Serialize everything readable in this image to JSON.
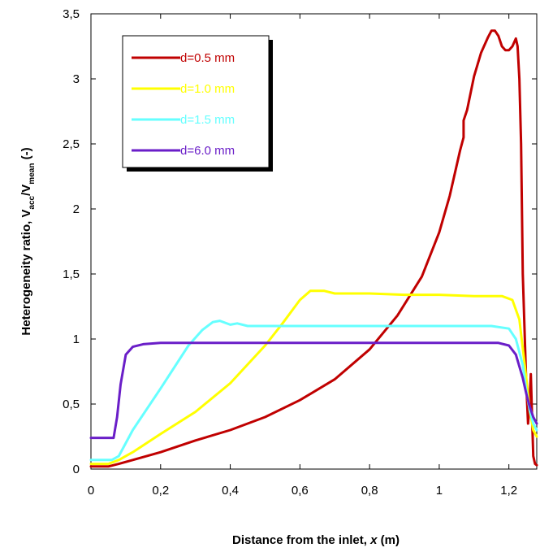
{
  "chart_data": {
    "type": "line",
    "xlabel": "Distance from the inlet, x (m)",
    "xlabel_parts": {
      "pre": "Distance from the inlet, ",
      "var": "x",
      "post": " (m)"
    },
    "ylabel": "Heterogeneity ratio, Vacc/Vmean (-)",
    "ylabel_parts": {
      "pre": "Heterogeneity ratio, V",
      "sub1": "acc",
      "mid": "/V",
      "sub2": "mean",
      "post": " (-)"
    },
    "xlim": [
      0,
      1.28
    ],
    "ylim": [
      0,
      3.5
    ],
    "x_tick_values": [
      0,
      0.2,
      0.4,
      0.6,
      0.8,
      1,
      1.2
    ],
    "x_tick_labels": [
      "0",
      "0,2",
      "0,4",
      "0,6",
      "0,8",
      "1",
      "1,2"
    ],
    "y_tick_values": [
      0,
      0.5,
      1,
      1.5,
      2,
      2.5,
      3,
      3.5
    ],
    "y_tick_labels": [
      "0",
      "0,5",
      "1",
      "1,5",
      "2",
      "2,5",
      "3",
      "3,5"
    ],
    "grid": false,
    "legend_position": "top-left",
    "series": [
      {
        "name": "d=0.5 mm",
        "color": "#c00000",
        "points": [
          [
            0,
            0.02
          ],
          [
            0.05,
            0.02
          ],
          [
            0.08,
            0.04
          ],
          [
            0.12,
            0.07
          ],
          [
            0.2,
            0.13
          ],
          [
            0.3,
            0.22
          ],
          [
            0.4,
            0.3
          ],
          [
            0.5,
            0.4
          ],
          [
            0.6,
            0.53
          ],
          [
            0.7,
            0.69
          ],
          [
            0.8,
            0.92
          ],
          [
            0.88,
            1.18
          ],
          [
            0.95,
            1.48
          ],
          [
            1.0,
            1.82
          ],
          [
            1.03,
            2.1
          ],
          [
            1.06,
            2.45
          ],
          [
            1.07,
            2.55
          ],
          [
            1.07,
            2.68
          ],
          [
            1.08,
            2.76
          ],
          [
            1.1,
            3.02
          ],
          [
            1.12,
            3.2
          ],
          [
            1.14,
            3.32
          ],
          [
            1.15,
            3.37
          ],
          [
            1.16,
            3.37
          ],
          [
            1.17,
            3.33
          ],
          [
            1.18,
            3.25
          ],
          [
            1.19,
            3.22
          ],
          [
            1.2,
            3.22
          ],
          [
            1.21,
            3.25
          ],
          [
            1.22,
            3.31
          ],
          [
            1.225,
            3.25
          ],
          [
            1.23,
            3.0
          ],
          [
            1.235,
            2.5
          ],
          [
            1.24,
            1.5
          ],
          [
            1.25,
            0.65
          ],
          [
            1.255,
            0.35
          ],
          [
            1.26,
            0.55
          ],
          [
            1.263,
            0.73
          ],
          [
            1.266,
            0.45
          ],
          [
            1.27,
            0.1
          ],
          [
            1.275,
            0.04
          ],
          [
            1.28,
            0.03
          ]
        ]
      },
      {
        "name": "d=1.0 mm",
        "color": "#ffff00",
        "points": [
          [
            0,
            0.04
          ],
          [
            0.05,
            0.04
          ],
          [
            0.08,
            0.07
          ],
          [
            0.12,
            0.13
          ],
          [
            0.2,
            0.27
          ],
          [
            0.3,
            0.44
          ],
          [
            0.4,
            0.66
          ],
          [
            0.5,
            0.95
          ],
          [
            0.55,
            1.12
          ],
          [
            0.6,
            1.3
          ],
          [
            0.63,
            1.37
          ],
          [
            0.67,
            1.37
          ],
          [
            0.7,
            1.35
          ],
          [
            0.8,
            1.35
          ],
          [
            0.9,
            1.34
          ],
          [
            1.0,
            1.34
          ],
          [
            1.1,
            1.33
          ],
          [
            1.18,
            1.33
          ],
          [
            1.21,
            1.3
          ],
          [
            1.23,
            1.15
          ],
          [
            1.25,
            0.7
          ],
          [
            1.26,
            0.45
          ],
          [
            1.27,
            0.3
          ],
          [
            1.28,
            0.25
          ]
        ]
      },
      {
        "name": "d=1.5 mm",
        "color": "#66ffff",
        "points": [
          [
            0,
            0.07
          ],
          [
            0.06,
            0.07
          ],
          [
            0.08,
            0.1
          ],
          [
            0.12,
            0.3
          ],
          [
            0.2,
            0.62
          ],
          [
            0.28,
            0.95
          ],
          [
            0.32,
            1.07
          ],
          [
            0.35,
            1.13
          ],
          [
            0.37,
            1.14
          ],
          [
            0.4,
            1.11
          ],
          [
            0.42,
            1.12
          ],
          [
            0.45,
            1.1
          ],
          [
            0.6,
            1.1
          ],
          [
            0.8,
            1.1
          ],
          [
            1.0,
            1.1
          ],
          [
            1.15,
            1.1
          ],
          [
            1.2,
            1.08
          ],
          [
            1.22,
            1.0
          ],
          [
            1.24,
            0.8
          ],
          [
            1.25,
            0.6
          ],
          [
            1.26,
            0.45
          ],
          [
            1.27,
            0.35
          ],
          [
            1.28,
            0.3
          ]
        ]
      },
      {
        "name": "d=6.0 mm",
        "color": "#6a1ec8",
        "points": [
          [
            0,
            0.24
          ],
          [
            0.065,
            0.24
          ],
          [
            0.075,
            0.4
          ],
          [
            0.085,
            0.65
          ],
          [
            0.1,
            0.88
          ],
          [
            0.12,
            0.94
          ],
          [
            0.15,
            0.96
          ],
          [
            0.2,
            0.97
          ],
          [
            0.4,
            0.97
          ],
          [
            0.6,
            0.97
          ],
          [
            0.8,
            0.97
          ],
          [
            1.0,
            0.97
          ],
          [
            1.17,
            0.97
          ],
          [
            1.2,
            0.95
          ],
          [
            1.22,
            0.88
          ],
          [
            1.24,
            0.7
          ],
          [
            1.25,
            0.58
          ],
          [
            1.26,
            0.48
          ],
          [
            1.27,
            0.4
          ],
          [
            1.28,
            0.35
          ]
        ]
      }
    ]
  }
}
